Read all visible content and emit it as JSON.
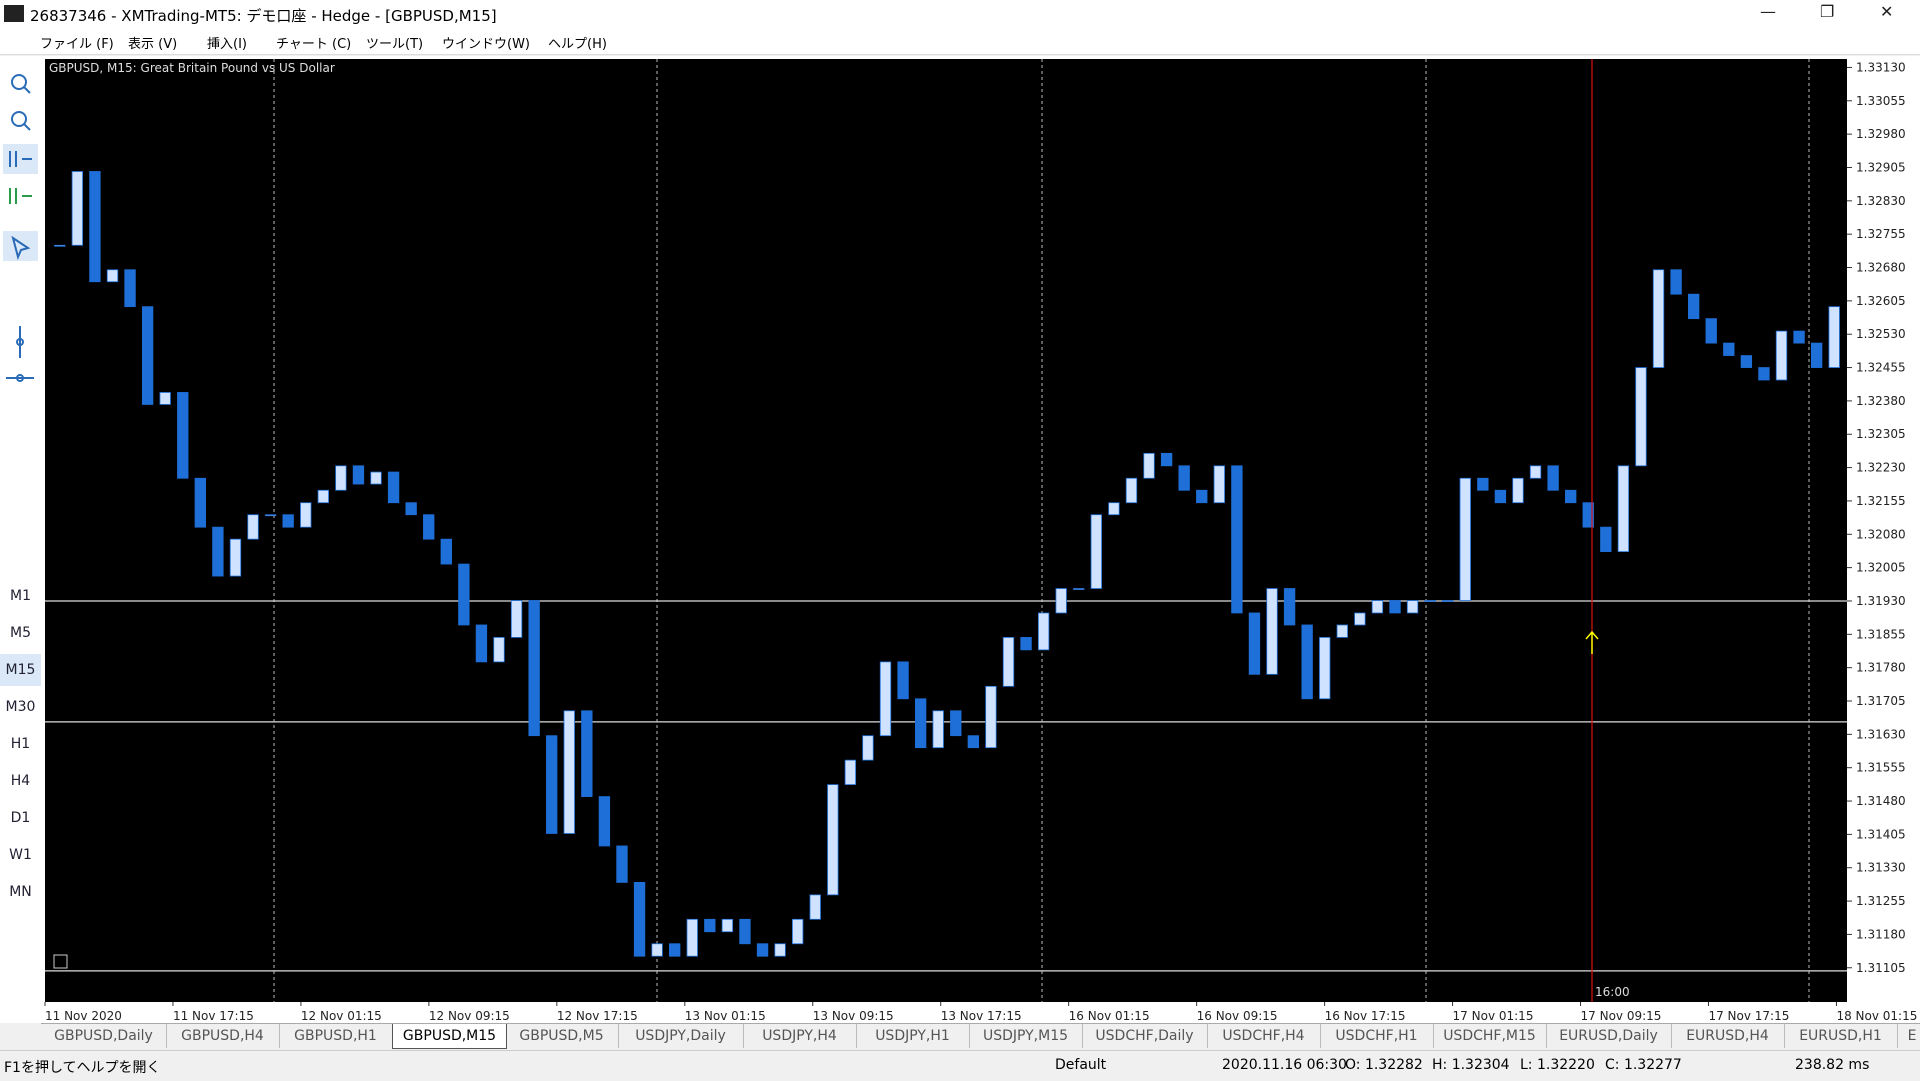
{
  "window": {
    "title": "26837346 - XMTrading-MT5: デモ口座 - Hedge - [GBPUSD,M15]"
  },
  "menu": [
    "ファイル (F)",
    "表示 (V)",
    "挿入(I)",
    "チャート (C)",
    "ツール(T)",
    "ウインドウ(W)",
    "ヘルプ(H)"
  ],
  "timeframes": [
    "M1",
    "M5",
    "M15",
    "M30",
    "H1",
    "H4",
    "D1",
    "W1",
    "MN"
  ],
  "active_timeframe": 2,
  "chart": {
    "type": "candlestick",
    "title": "GBPUSD, M15:  Great Britain Pound vs US Dollar",
    "ylim": [
      1.31028,
      1.33149
    ],
    "yticks": [
      {
        "value": 1.3313,
        "label": "1.33130"
      },
      1.33055,
      {
        "value": 1.3298,
        "label": "1.32980"
      },
      1.32905,
      {
        "value": 1.3283,
        "label": "1.32830"
      },
      1.32755,
      {
        "value": 1.3268,
        "label": "1.32680"
      },
      1.32605,
      {
        "value": 1.3253,
        "label": "1.32530"
      },
      1.32455,
      {
        "value": 1.3238,
        "label": "1.32380"
      },
      1.32305,
      {
        "value": 1.3223,
        "label": "1.32230"
      },
      1.32155,
      {
        "value": 1.3208,
        "label": "1.32080"
      },
      1.32005,
      {
        "value": 1.3193,
        "label": "1.31930"
      },
      1.31855,
      {
        "value": 1.3178,
        "label": "1.31780"
      },
      1.31705,
      {
        "value": 1.3163,
        "label": "1.31630"
      },
      1.31555,
      {
        "value": 1.3148,
        "label": "1.31480"
      },
      1.31405,
      {
        "value": 1.3133,
        "label": "1.31330"
      },
      1.31255,
      {
        "value": 1.3118,
        "label": "1.31180"
      },
      1.31105
    ],
    "time_labels": [
      "11 Nov 2020",
      "11 Nov 17:15",
      "12 Nov 01:15",
      "12 Nov 09:15",
      "12 Nov 17:15",
      "13 Nov 01:15",
      "13 Nov 09:15",
      "13 Nov 17:15",
      "16 Nov 01:15",
      "16 Nov 09:15",
      "16 Nov 17:15",
      "17 Nov 01:15",
      "17 Nov 09:15",
      "17 Nov 17:15",
      "18 Nov 01:15"
    ],
    "up_color": "#cfe2ff",
    "down_color": "#1f6fd8",
    "close": [
      1.3273,
      1.32896,
      1.32648,
      1.32675,
      1.32592,
      1.32372,
      1.32399,
      1.32206,
      1.32096,
      1.31986,
      1.32069,
      1.32124,
      1.32124,
      1.32096,
      1.32151,
      1.32179,
      1.32234,
      1.32193,
      1.3222,
      1.32151,
      1.32124,
      1.32069,
      1.32013,
      1.31876,
      1.31793,
      1.31848,
      1.31931,
      1.31627,
      1.31407,
      1.31683,
      1.3149,
      1.31379,
      1.31297,
      1.31131,
      1.31159,
      1.31131,
      1.31214,
      1.31186,
      1.31214,
      1.31159,
      1.31131,
      1.31159,
      1.31214,
      1.31269,
      1.31517,
      1.31572,
      1.31627,
      1.31793,
      1.3171,
      1.316,
      1.31683,
      1.31627,
      1.316,
      1.31738,
      1.31848,
      1.3182,
      1.31903,
      1.31958,
      1.31958,
      1.32124,
      1.32151,
      1.32206,
      1.32262,
      1.32234,
      1.32179,
      1.32151,
      1.32234,
      1.31903,
      1.31765,
      1.31958,
      1.31876,
      1.3171,
      1.31848,
      1.31876,
      1.31903,
      1.31931,
      1.31903,
      1.31931,
      1.31931,
      1.31931,
      1.32206,
      1.32179,
      1.32151,
      1.32206,
      1.32234,
      1.32179,
      1.32151,
      1.32096,
      1.32041,
      1.32234,
      1.32455,
      1.32675,
      1.3262,
      1.32565,
      1.3251,
      1.32482,
      1.32455,
      1.32427,
      1.32537,
      1.3251,
      1.32455,
      1.32592
    ],
    "levels": [
      1.3193,
      1.31658,
      1.31098
    ],
    "cursor_label": "16:00"
  },
  "tabs": [
    "GBPUSD,Daily",
    "GBPUSD,H4",
    "GBPUSD,H1",
    "GBPUSD,M15",
    "GBPUSD,M5",
    "USDJPY,Daily",
    "USDJPY,H4",
    "USDJPY,H1",
    "USDJPY,M15",
    "USDCHF,Daily",
    "USDCHF,H4",
    "USDCHF,H1",
    "USDCHF,M15",
    "EURUSD,Daily",
    "EURUSD,H4",
    "EURUSD,H1",
    "E"
  ],
  "active_tab": 3,
  "status": {
    "help": "F1を押してヘルプを開く",
    "profile": "Default",
    "time": "2020.11.16 06:30",
    "open": "O: 1.32282",
    "high": "H: 1.32304",
    "low": "L: 1.32220",
    "close": "C: 1.32277",
    "ping": "238.82 ms"
  }
}
